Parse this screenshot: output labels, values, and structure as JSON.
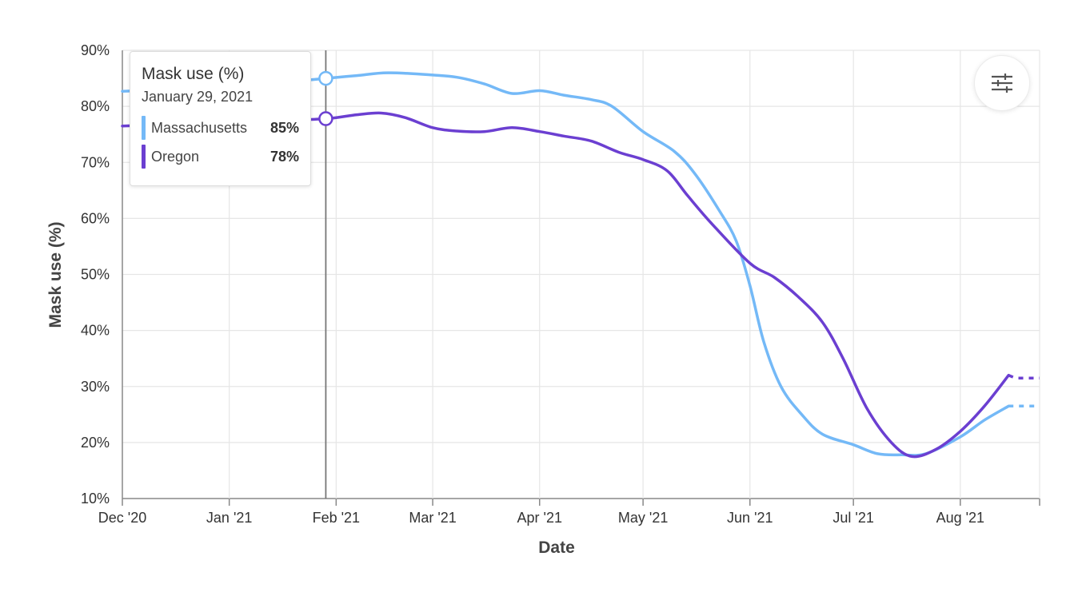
{
  "chart_data": {
    "type": "line",
    "xlabel": "Date",
    "ylabel": "Mask use (%)",
    "x_range": [
      "2020-12-01",
      "2021-08-24"
    ],
    "ylim": [
      10,
      90
    ],
    "y_ticks": [
      10,
      20,
      30,
      40,
      50,
      60,
      70,
      80,
      90
    ],
    "y_tick_suffix": "%",
    "x_ticks": [
      {
        "date": "2020-12-01",
        "label": "Dec '20"
      },
      {
        "date": "2021-01-01",
        "label": "Jan '21"
      },
      {
        "date": "2021-02-01",
        "label": "Feb '21"
      },
      {
        "date": "2021-03-01",
        "label": "Mar '21"
      },
      {
        "date": "2021-04-01",
        "label": "Apr '21"
      },
      {
        "date": "2021-05-01",
        "label": "May '21"
      },
      {
        "date": "2021-06-01",
        "label": "Jun '21"
      },
      {
        "date": "2021-07-01",
        "label": "Jul '21"
      },
      {
        "date": "2021-08-01",
        "label": "Aug '21"
      }
    ],
    "grid": true,
    "series": [
      {
        "name": "Massachusetts",
        "color": "#74b9f7",
        "points": [
          [
            "2020-12-01",
            82.7
          ],
          [
            "2020-12-15",
            83.0
          ],
          [
            "2021-01-01",
            83.5
          ],
          [
            "2021-01-15",
            84.2
          ],
          [
            "2021-01-29",
            85.0
          ],
          [
            "2021-02-07",
            85.5
          ],
          [
            "2021-02-16",
            86.0
          ],
          [
            "2021-03-01",
            85.6
          ],
          [
            "2021-03-08",
            85.2
          ],
          [
            "2021-03-16",
            84.0
          ],
          [
            "2021-03-24",
            82.3
          ],
          [
            "2021-04-01",
            82.8
          ],
          [
            "2021-04-08",
            82.0
          ],
          [
            "2021-04-16",
            81.2
          ],
          [
            "2021-04-22",
            80.0
          ],
          [
            "2021-05-01",
            75.5
          ],
          [
            "2021-05-10",
            72.0
          ],
          [
            "2021-05-16",
            68.0
          ],
          [
            "2021-05-23",
            61.5
          ],
          [
            "2021-05-28",
            56.0
          ],
          [
            "2021-06-01",
            48.0
          ],
          [
            "2021-06-05",
            38.0
          ],
          [
            "2021-06-10",
            30.0
          ],
          [
            "2021-06-16",
            25.0
          ],
          [
            "2021-06-22",
            21.5
          ],
          [
            "2021-07-01",
            19.6
          ],
          [
            "2021-07-08",
            18.0
          ],
          [
            "2021-07-15",
            17.8
          ],
          [
            "2021-07-22",
            18.0
          ],
          [
            "2021-08-01",
            21.0
          ],
          [
            "2021-08-08",
            24.0
          ],
          [
            "2021-08-15",
            26.5
          ]
        ],
        "projected": [
          [
            "2021-08-15",
            26.5
          ],
          [
            "2021-08-24",
            26.5
          ]
        ]
      },
      {
        "name": "Oregon",
        "color": "#6b3fd1",
        "points": [
          [
            "2020-12-01",
            76.5
          ],
          [
            "2020-12-15",
            76.8
          ],
          [
            "2021-01-01",
            77.2
          ],
          [
            "2021-01-15",
            77.5
          ],
          [
            "2021-01-29",
            77.8
          ],
          [
            "2021-02-07",
            78.5
          ],
          [
            "2021-02-14",
            78.8
          ],
          [
            "2021-02-21",
            78.0
          ],
          [
            "2021-03-01",
            76.2
          ],
          [
            "2021-03-08",
            75.6
          ],
          [
            "2021-03-16",
            75.5
          ],
          [
            "2021-03-24",
            76.2
          ],
          [
            "2021-04-01",
            75.5
          ],
          [
            "2021-04-08",
            74.7
          ],
          [
            "2021-04-16",
            73.8
          ],
          [
            "2021-04-24",
            71.8
          ],
          [
            "2021-05-01",
            70.5
          ],
          [
            "2021-05-08",
            68.5
          ],
          [
            "2021-05-14",
            64.0
          ],
          [
            "2021-05-21",
            59.0
          ],
          [
            "2021-06-01",
            52.0
          ],
          [
            "2021-06-08",
            49.5
          ],
          [
            "2021-06-15",
            46.0
          ],
          [
            "2021-06-22",
            41.5
          ],
          [
            "2021-06-28",
            35.0
          ],
          [
            "2021-07-05",
            26.0
          ],
          [
            "2021-07-12",
            20.0
          ],
          [
            "2021-07-18",
            17.5
          ],
          [
            "2021-07-25",
            18.8
          ],
          [
            "2021-08-01",
            22.0
          ],
          [
            "2021-08-08",
            26.5
          ],
          [
            "2021-08-15",
            32.0
          ]
        ],
        "projected": [
          [
            "2021-08-15",
            32.0
          ],
          [
            "2021-08-17",
            31.5
          ],
          [
            "2021-08-24",
            31.5
          ]
        ]
      }
    ],
    "hover": {
      "date": "2021-01-29"
    }
  },
  "tooltip": {
    "title": "Mask use (%)",
    "date": "January 29, 2021",
    "rows": [
      {
        "name": "Massachusetts",
        "value": "85%",
        "color": "#74b9f7"
      },
      {
        "name": "Oregon",
        "value": "78%",
        "color": "#6b3fd1"
      }
    ]
  },
  "controls": {
    "settings_icon": "sliders-icon"
  }
}
